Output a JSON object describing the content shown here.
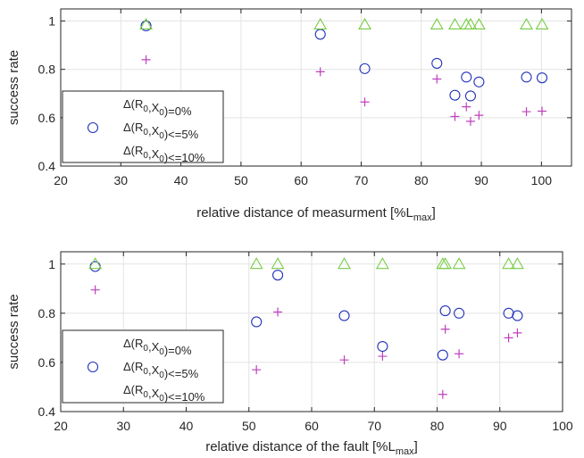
{
  "chart_data": [
    {
      "type": "scatter",
      "xlabel": "relative distance of measurment [%L",
      "xlabel_sub": "max",
      "xlabel_end": "]",
      "ylabel": "success rate",
      "xlim": [
        20,
        105
      ],
      "ylim": [
        0.4,
        1.05
      ],
      "x_ticks": [
        20,
        30,
        40,
        50,
        60,
        70,
        80,
        90,
        100
      ],
      "y_ticks": [
        0.4,
        0.6,
        0.8,
        1
      ],
      "grid": true,
      "legend_placement": "lower-left",
      "series": [
        {
          "name": "Δ(R0,X0)=0%",
          "marker": "cross",
          "color": "#bf40bf",
          "x": [
            34.2,
            63.2,
            70.6,
            82.6,
            85.6,
            87.5,
            88.2,
            89.6,
            97.5,
            100.1
          ],
          "y": [
            0.84,
            0.79,
            0.665,
            0.76,
            0.605,
            0.645,
            0.585,
            0.61,
            0.625,
            0.627
          ]
        },
        {
          "name": "Δ(R0,X0)<=5%",
          "marker": "circle",
          "color": "#2233bb",
          "x": [
            34.2,
            63.2,
            70.6,
            82.6,
            85.6,
            87.5,
            88.2,
            89.6,
            97.5,
            100.1
          ],
          "y": [
            0.98,
            0.945,
            0.803,
            0.825,
            0.693,
            0.768,
            0.69,
            0.748,
            0.768,
            0.765
          ]
        },
        {
          "name": "Δ(R0,X0)<=10%",
          "marker": "triangle",
          "color": "#77cc44",
          "x": [
            34.2,
            63.2,
            70.6,
            82.6,
            85.6,
            87.5,
            88.2,
            89.6,
            97.5,
            100.1
          ],
          "y": [
            0.985,
            0.985,
            0.985,
            0.985,
            0.985,
            0.985,
            0.985,
            0.985,
            0.985,
            0.985
          ]
        }
      ]
    },
    {
      "type": "scatter",
      "xlabel": "relative distance of the fault [%L",
      "xlabel_sub": "max",
      "xlabel_end": "]",
      "ylabel": "success rate",
      "xlim": [
        20,
        100
      ],
      "ylim": [
        0.4,
        1.05
      ],
      "x_ticks": [
        20,
        30,
        40,
        50,
        60,
        70,
        80,
        90,
        100
      ],
      "y_ticks": [
        0.4,
        0.6,
        0.8,
        1
      ],
      "grid": true,
      "legend_placement": "lower-left",
      "series": [
        {
          "name": "Δ(R0,X0)=0%",
          "marker": "cross",
          "color": "#bf40bf",
          "x": [
            25.5,
            51.2,
            54.6,
            65.2,
            71.3,
            80.9,
            81.3,
            83.5,
            91.4,
            92.8
          ],
          "y": [
            0.895,
            0.57,
            0.805,
            0.61,
            0.625,
            0.47,
            0.735,
            0.635,
            0.7,
            0.72
          ]
        },
        {
          "name": "Δ(R0,X0)<=5%",
          "marker": "circle",
          "color": "#2233bb",
          "x": [
            25.5,
            51.2,
            54.6,
            65.2,
            71.3,
            80.9,
            81.3,
            83.5,
            91.4,
            92.8
          ],
          "y": [
            0.99,
            0.765,
            0.955,
            0.79,
            0.665,
            0.63,
            0.81,
            0.8,
            0.8,
            0.79
          ]
        },
        {
          "name": "Δ(R0,X0)<=10%",
          "marker": "triangle",
          "color": "#77cc44",
          "x": [
            25.5,
            51.2,
            54.6,
            65.2,
            71.3,
            80.9,
            81.3,
            83.5,
            91.4,
            92.8
          ],
          "y": [
            1.0,
            1.0,
            1.0,
            1.0,
            1.0,
            1.0,
            1.0,
            1.0,
            1.0,
            1.0
          ]
        }
      ]
    }
  ]
}
